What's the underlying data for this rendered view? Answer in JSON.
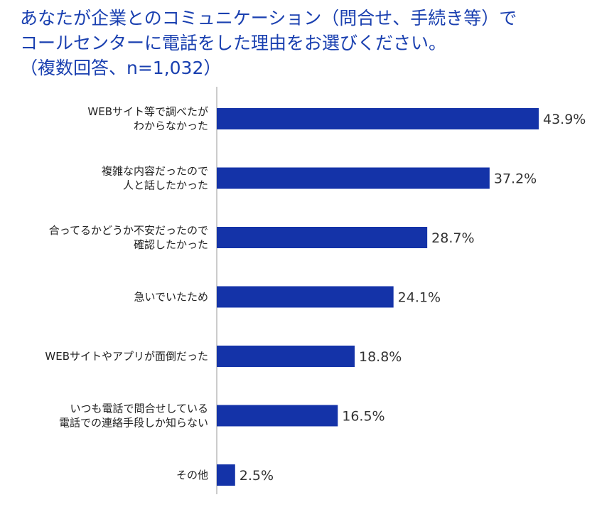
{
  "chart_data": {
    "type": "bar",
    "orientation": "horizontal",
    "title_lines": [
      "あなたが企業とのコミュニケーション（問合せ、手続き等）で",
      "コールセンターに電話をした理由をお選びください。",
      "（複数回答、n=1,032）"
    ],
    "categories": [
      [
        "WEBサイト等で調べたが",
        "わからなかった"
      ],
      [
        "複雑な内容だったので",
        "人と話したかった"
      ],
      [
        "合ってるかどうか不安だったので",
        "確認したかった"
      ],
      [
        "急いでいたため"
      ],
      [
        "WEBサイトやアプリが面倒だった"
      ],
      [
        "いつも電話で問合せしている",
        "電話での連絡手段しか知らない"
      ],
      [
        "その他"
      ]
    ],
    "values": [
      43.9,
      37.2,
      28.7,
      24.1,
      18.8,
      16.5,
      2.5
    ],
    "value_labels": [
      "43.9%",
      "37.2%",
      "28.7%",
      "24.1%",
      "18.8%",
      "16.5%",
      "2.5%"
    ],
    "unit": "%",
    "xlim": [
      0,
      43.9
    ],
    "bar_color": "#1433a8",
    "axis_color": "#bbbbbb",
    "title_color": "#1a40b0",
    "grid": false,
    "legend": "none"
  }
}
